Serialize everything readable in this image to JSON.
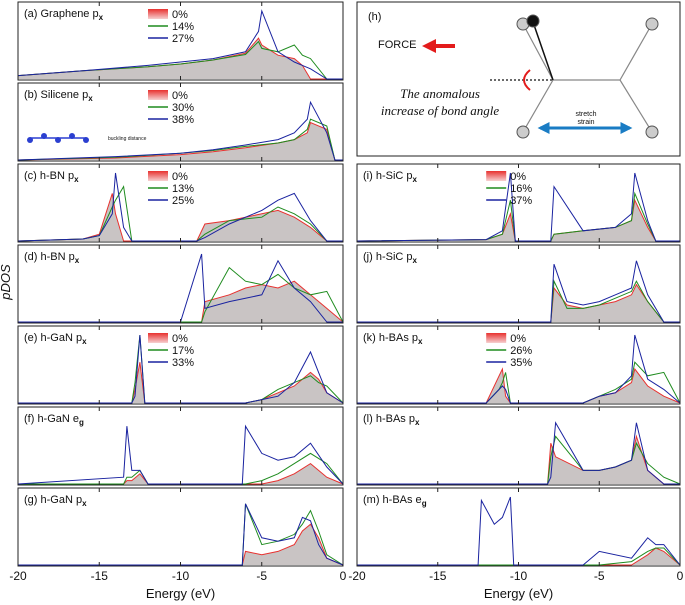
{
  "figure": {
    "ylabel": "pDOS"
  },
  "diagram": {
    "label": "(h)",
    "force": "FORCE",
    "caption": [
      "The anomalous",
      "increase of bond angle"
    ],
    "strain": [
      "stretch",
      "strain"
    ]
  },
  "chart_data": [
    {
      "type": "line",
      "title": "(a) Graphene p",
      "title_sub": "x",
      "xlim": [
        -20,
        0
      ],
      "xticks": [
        -20,
        -15,
        -10,
        -5,
        0
      ],
      "ylim": [
        0,
        100
      ],
      "legend": "top",
      "x": [
        -20,
        -16,
        -12,
        -10,
        -8,
        -6,
        -5.2,
        -5,
        -4,
        -3,
        -2.5,
        -2,
        -1,
        0
      ],
      "series": [
        {
          "name": "0%",
          "color": "#e8312f",
          "values": [
            5,
            12,
            18,
            22,
            28,
            38,
            60,
            50,
            35,
            30,
            20,
            0,
            0,
            0
          ]
        },
        {
          "name": "14%",
          "color": "#1f8c1f",
          "values": [
            5,
            12,
            18,
            22,
            28,
            36,
            55,
            45,
            40,
            50,
            35,
            30,
            0,
            0
          ]
        },
        {
          "name": "27%",
          "color": "#1a23a0",
          "values": [
            5,
            12,
            20,
            25,
            30,
            40,
            70,
            100,
            40,
            25,
            20,
            15,
            0,
            0
          ]
        }
      ]
    },
    {
      "type": "line",
      "title": "(b) Silicene p",
      "title_sub": "x",
      "annotation": "buckling distance",
      "xlim": [
        -20,
        0
      ],
      "xticks": [
        -20,
        -15,
        -10,
        -5,
        0
      ],
      "ylim": [
        0,
        100
      ],
      "legend": "top",
      "x": [
        -20,
        -14,
        -10,
        -8,
        -6,
        -4,
        -3,
        -2.2,
        -2,
        -1,
        -0.5,
        0
      ],
      "series": [
        {
          "name": "0%",
          "color": "#e8312f",
          "values": [
            0,
            3,
            8,
            12,
            18,
            25,
            30,
            40,
            55,
            45,
            0,
            0
          ]
        },
        {
          "name": "30%",
          "color": "#1f8c1f",
          "values": [
            0,
            4,
            10,
            14,
            20,
            25,
            30,
            45,
            60,
            50,
            0,
            0
          ]
        },
        {
          "name": "38%",
          "color": "#1a23a0",
          "values": [
            0,
            5,
            10,
            15,
            22,
            30,
            40,
            60,
            85,
            40,
            0,
            0
          ]
        }
      ]
    },
    {
      "type": "line",
      "title": "(c) h-BN p",
      "title_sub": "x",
      "xlim": [
        -20,
        0
      ],
      "xticks": [
        -20,
        -15,
        -10,
        -5,
        0
      ],
      "ylim": [
        0,
        100
      ],
      "legend": "top",
      "x": [
        -20,
        -16,
        -15,
        -14.2,
        -14,
        -13.5,
        -13,
        -9,
        -8.5,
        -7,
        -5,
        -4,
        -3,
        -2,
        -1,
        0
      ],
      "series": [
        {
          "name": "0%",
          "color": "#e8312f",
          "values": [
            0,
            3,
            10,
            70,
            40,
            0,
            0,
            0,
            25,
            30,
            40,
            45,
            35,
            20,
            0,
            0
          ]
        },
        {
          "name": "13%",
          "color": "#1f8c1f",
          "values": [
            0,
            3,
            8,
            50,
            60,
            80,
            0,
            0,
            10,
            30,
            35,
            50,
            40,
            25,
            0,
            0
          ]
        },
        {
          "name": "25%",
          "color": "#1a23a0",
          "values": [
            0,
            3,
            8,
            40,
            100,
            20,
            0,
            0,
            5,
            25,
            45,
            60,
            70,
            30,
            0,
            0
          ]
        }
      ]
    },
    {
      "type": "line",
      "title": "(d) h-BN p",
      "title_sub": "x",
      "xlim": [
        -20,
        0
      ],
      "xticks": [
        -20,
        -15,
        -10,
        -5,
        0
      ],
      "ylim": [
        0,
        100
      ],
      "x": [
        -20,
        -10,
        -8.7,
        -8.5,
        -7,
        -6,
        -5,
        -4,
        -3,
        -2,
        -1,
        0
      ],
      "series": [
        {
          "color": "#e8312f",
          "values": [
            0,
            0,
            0,
            30,
            40,
            50,
            55,
            50,
            60,
            40,
            20,
            0
          ]
        },
        {
          "color": "#1f8c1f",
          "values": [
            0,
            0,
            0,
            15,
            80,
            60,
            55,
            70,
            50,
            40,
            45,
            0
          ]
        },
        {
          "color": "#1a23a0",
          "values": [
            0,
            0,
            100,
            20,
            30,
            35,
            40,
            90,
            50,
            30,
            0,
            0
          ]
        }
      ]
    },
    {
      "type": "line",
      "title": "(e) h-GaN p",
      "title_sub": "x",
      "xlim": [
        -20,
        0
      ],
      "xticks": [
        -20,
        -15,
        -10,
        -5,
        0
      ],
      "ylim": [
        0,
        100
      ],
      "legend": "top",
      "x": [
        -20,
        -13,
        -12.8,
        -12.5,
        -12.2,
        -12,
        -6,
        -5,
        -4,
        -3,
        -2,
        -1.5,
        -1,
        0
      ],
      "series": [
        {
          "name": "0%",
          "color": "#e8312f",
          "values": [
            0,
            0,
            20,
            60,
            0,
            0,
            0,
            5,
            15,
            25,
            45,
            35,
            15,
            0
          ]
        },
        {
          "name": "17%",
          "color": "#1f8c1f",
          "values": [
            0,
            0,
            30,
            100,
            0,
            0,
            0,
            5,
            20,
            30,
            40,
            30,
            25,
            0
          ]
        },
        {
          "name": "33%",
          "color": "#1a23a0",
          "values": [
            0,
            0,
            10,
            100,
            0,
            0,
            0,
            5,
            10,
            30,
            75,
            45,
            15,
            0
          ]
        }
      ]
    },
    {
      "type": "line",
      "title": "(f) h-GaN e",
      "title_sub": "g",
      "xlim": [
        -20,
        0
      ],
      "xticks": [
        -20,
        -15,
        -10,
        -5,
        0
      ],
      "ylim": [
        0,
        100
      ],
      "x": [
        -20,
        -13.5,
        -13.3,
        -13,
        -12.5,
        -12,
        -6.2,
        -6,
        -5,
        -4,
        -3,
        -2,
        -1,
        0
      ],
      "series": [
        {
          "color": "#e8312f",
          "values": [
            0,
            0,
            5,
            5,
            15,
            0,
            0,
            0,
            0,
            5,
            15,
            30,
            10,
            0
          ]
        },
        {
          "color": "#1f8c1f",
          "values": [
            0,
            0,
            10,
            10,
            20,
            0,
            0,
            0,
            5,
            15,
            30,
            45,
            30,
            0
          ]
        },
        {
          "color": "#1a23a0",
          "values": [
            0,
            10,
            85,
            20,
            20,
            0,
            0,
            85,
            45,
            35,
            40,
            60,
            25,
            0
          ]
        }
      ]
    },
    {
      "type": "line",
      "title": "(g) h-GaN p",
      "title_sub": "x",
      "xlabel": "Energy (eV)",
      "xlim": [
        -20,
        0
      ],
      "xticks": [
        -20,
        -15,
        -10,
        -5,
        0
      ],
      "ylim": [
        0,
        100
      ],
      "x": [
        -20,
        -6.2,
        -6,
        -5,
        -4,
        -3,
        -2.5,
        -2,
        -1.5,
        -1,
        0
      ],
      "series": [
        {
          "color": "#e8312f",
          "values": [
            0,
            0,
            20,
            15,
            20,
            30,
            50,
            60,
            40,
            10,
            0
          ]
        },
        {
          "color": "#1f8c1f",
          "values": [
            0,
            0,
            90,
            30,
            35,
            45,
            60,
            80,
            50,
            15,
            0
          ]
        },
        {
          "color": "#1a23a0",
          "values": [
            0,
            0,
            90,
            40,
            35,
            40,
            70,
            65,
            30,
            10,
            0
          ]
        }
      ]
    },
    {
      "type": "line",
      "title": "(i) h-SiC p",
      "title_sub": "x",
      "xlim": [
        -20,
        0
      ],
      "xticks": [
        -20,
        -15,
        -10,
        -5,
        0
      ],
      "ylim": [
        0,
        100
      ],
      "legend": "top",
      "x": [
        -20,
        -12,
        -11,
        -10.5,
        -10.2,
        -10,
        -8,
        -7.8,
        -6,
        -4,
        -3,
        -2.8,
        -2,
        -1.5,
        0
      ],
      "series": [
        {
          "name": "0%",
          "color": "#e8312f",
          "values": [
            0,
            2,
            10,
            40,
            0,
            0,
            0,
            10,
            15,
            20,
            30,
            60,
            20,
            0,
            0
          ]
        },
        {
          "name": "16%",
          "color": "#1f8c1f",
          "values": [
            0,
            2,
            10,
            60,
            0,
            0,
            0,
            10,
            15,
            20,
            30,
            70,
            25,
            0,
            0
          ]
        },
        {
          "name": "37%",
          "color": "#1a23a0",
          "values": [
            0,
            2,
            15,
            100,
            0,
            0,
            0,
            80,
            15,
            20,
            40,
            100,
            30,
            0,
            0
          ]
        }
      ]
    },
    {
      "type": "line",
      "title": "(j) h-SiC p",
      "title_sub": "x",
      "xlim": [
        -20,
        0
      ],
      "xticks": [
        -20,
        -15,
        -10,
        -5,
        0
      ],
      "ylim": [
        0,
        100
      ],
      "x": [
        -20,
        -8,
        -7.8,
        -7,
        -6,
        -5,
        -4,
        -3,
        -2.7,
        -2,
        -1,
        0
      ],
      "series": [
        {
          "color": "#e8312f",
          "values": [
            0,
            0,
            50,
            25,
            20,
            25,
            30,
            40,
            55,
            30,
            0,
            0
          ]
        },
        {
          "color": "#1f8c1f",
          "values": [
            0,
            0,
            60,
            20,
            20,
            25,
            35,
            45,
            60,
            30,
            0,
            0
          ]
        },
        {
          "color": "#1a23a0",
          "values": [
            0,
            0,
            85,
            30,
            25,
            30,
            40,
            50,
            90,
            40,
            0,
            0
          ]
        }
      ]
    },
    {
      "type": "line",
      "title": "(k) h-BAs p",
      "title_sub": "x",
      "xlim": [
        -20,
        0
      ],
      "xticks": [
        -20,
        -15,
        -10,
        -5,
        0
      ],
      "ylim": [
        0,
        100
      ],
      "legend": "top",
      "x": [
        -20,
        -12,
        -11.2,
        -11,
        -10.8,
        -10.5,
        -6,
        -5,
        -4,
        -3,
        -2.8,
        -2,
        -1,
        0
      ],
      "series": [
        {
          "name": "0%",
          "color": "#e8312f",
          "values": [
            0,
            0,
            40,
            50,
            10,
            0,
            0,
            10,
            15,
            30,
            50,
            25,
            10,
            0
          ]
        },
        {
          "name": "26%",
          "color": "#1f8c1f",
          "values": [
            0,
            0,
            20,
            30,
            45,
            0,
            0,
            10,
            20,
            35,
            60,
            40,
            45,
            0
          ]
        },
        {
          "name": "35%",
          "color": "#1a23a0",
          "values": [
            0,
            0,
            20,
            25,
            20,
            0,
            0,
            10,
            15,
            40,
            100,
            35,
            20,
            0
          ]
        }
      ]
    },
    {
      "type": "line",
      "title": "(l) h-BAs p",
      "title_sub": "x",
      "xlim": [
        -20,
        0
      ],
      "xticks": [
        -20,
        -15,
        -10,
        -5,
        0
      ],
      "ylim": [
        0,
        100
      ],
      "x": [
        -20,
        -8.2,
        -8,
        -7.7,
        -6,
        -5,
        -4,
        -3,
        -2.7,
        -2,
        -1,
        0
      ],
      "series": [
        {
          "color": "#e8312f",
          "values": [
            0,
            0,
            60,
            40,
            20,
            20,
            25,
            35,
            70,
            20,
            0,
            0
          ]
        },
        {
          "color": "#1f8c1f",
          "values": [
            0,
            0,
            40,
            70,
            20,
            20,
            25,
            35,
            60,
            30,
            10,
            0
          ]
        },
        {
          "color": "#1a23a0",
          "values": [
            0,
            0,
            10,
            90,
            20,
            20,
            25,
            35,
            90,
            20,
            0,
            0
          ]
        }
      ]
    },
    {
      "type": "line",
      "title": "(m) h-BAs e",
      "title_sub": "g",
      "xlabel": "Energy (eV)",
      "xlim": [
        -20,
        0
      ],
      "xticks": [
        -20,
        -15,
        -10,
        -5,
        0
      ],
      "ylim": [
        0,
        100
      ],
      "x": [
        -20,
        -12.5,
        -12.3,
        -11.5,
        -11,
        -10.5,
        -10.3,
        -6,
        -5,
        -3,
        -2,
        -1.5,
        -1,
        0
      ],
      "series": [
        {
          "color": "#e8312f",
          "values": [
            0,
            0,
            0,
            0,
            0,
            0,
            0,
            0,
            0,
            0,
            15,
            25,
            20,
            0
          ]
        },
        {
          "color": "#1f8c1f",
          "values": [
            0,
            0,
            0,
            0,
            0,
            0,
            0,
            0,
            0,
            5,
            20,
            25,
            25,
            0
          ]
        },
        {
          "color": "#1a23a0",
          "values": [
            0,
            0,
            95,
            60,
            70,
            100,
            0,
            0,
            20,
            10,
            40,
            30,
            30,
            0
          ]
        }
      ]
    }
  ]
}
